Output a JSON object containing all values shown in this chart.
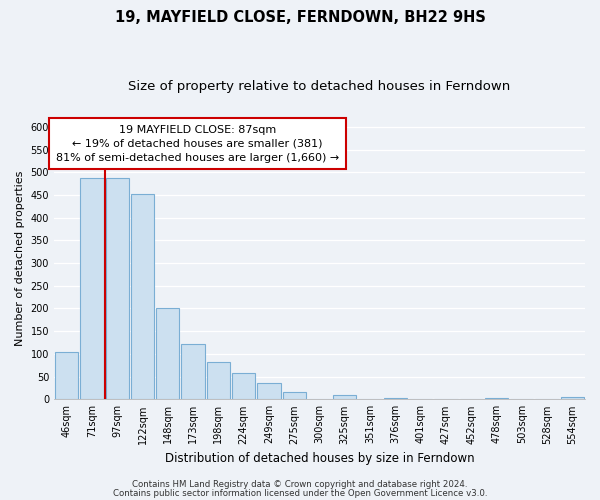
{
  "title": "19, MAYFIELD CLOSE, FERNDOWN, BH22 9HS",
  "subtitle": "Size of property relative to detached houses in Ferndown",
  "xlabel": "Distribution of detached houses by size in Ferndown",
  "ylabel": "Number of detached properties",
  "bar_labels": [
    "46sqm",
    "71sqm",
    "97sqm",
    "122sqm",
    "148sqm",
    "173sqm",
    "198sqm",
    "224sqm",
    "249sqm",
    "275sqm",
    "300sqm",
    "325sqm",
    "351sqm",
    "376sqm",
    "401sqm",
    "427sqm",
    "452sqm",
    "478sqm",
    "503sqm",
    "528sqm",
    "554sqm"
  ],
  "bar_values": [
    105,
    487,
    487,
    453,
    202,
    122,
    83,
    57,
    35,
    17,
    0,
    10,
    0,
    3,
    0,
    0,
    0,
    3,
    0,
    0,
    5
  ],
  "bar_facecolor": "#cce0f0",
  "bar_edgecolor": "#7aaed4",
  "vline_x": 1.5,
  "vline_color": "#cc0000",
  "ylim": [
    0,
    620
  ],
  "yticks": [
    0,
    50,
    100,
    150,
    200,
    250,
    300,
    350,
    400,
    450,
    500,
    550,
    600
  ],
  "annotation_title": "19 MAYFIELD CLOSE: 87sqm",
  "annotation_line1": "← 19% of detached houses are smaller (381)",
  "annotation_line2": "81% of semi-detached houses are larger (1,660) →",
  "footer_line1": "Contains HM Land Registry data © Crown copyright and database right 2024.",
  "footer_line2": "Contains public sector information licensed under the Open Government Licence v3.0.",
  "background_color": "#eef2f7",
  "grid_color": "#ffffff",
  "title_fontsize": 10.5,
  "subtitle_fontsize": 9.5,
  "xlabel_fontsize": 8.5,
  "ylabel_fontsize": 8,
  "tick_fontsize": 7,
  "footer_fontsize": 6.2,
  "ann_fontsize": 8
}
